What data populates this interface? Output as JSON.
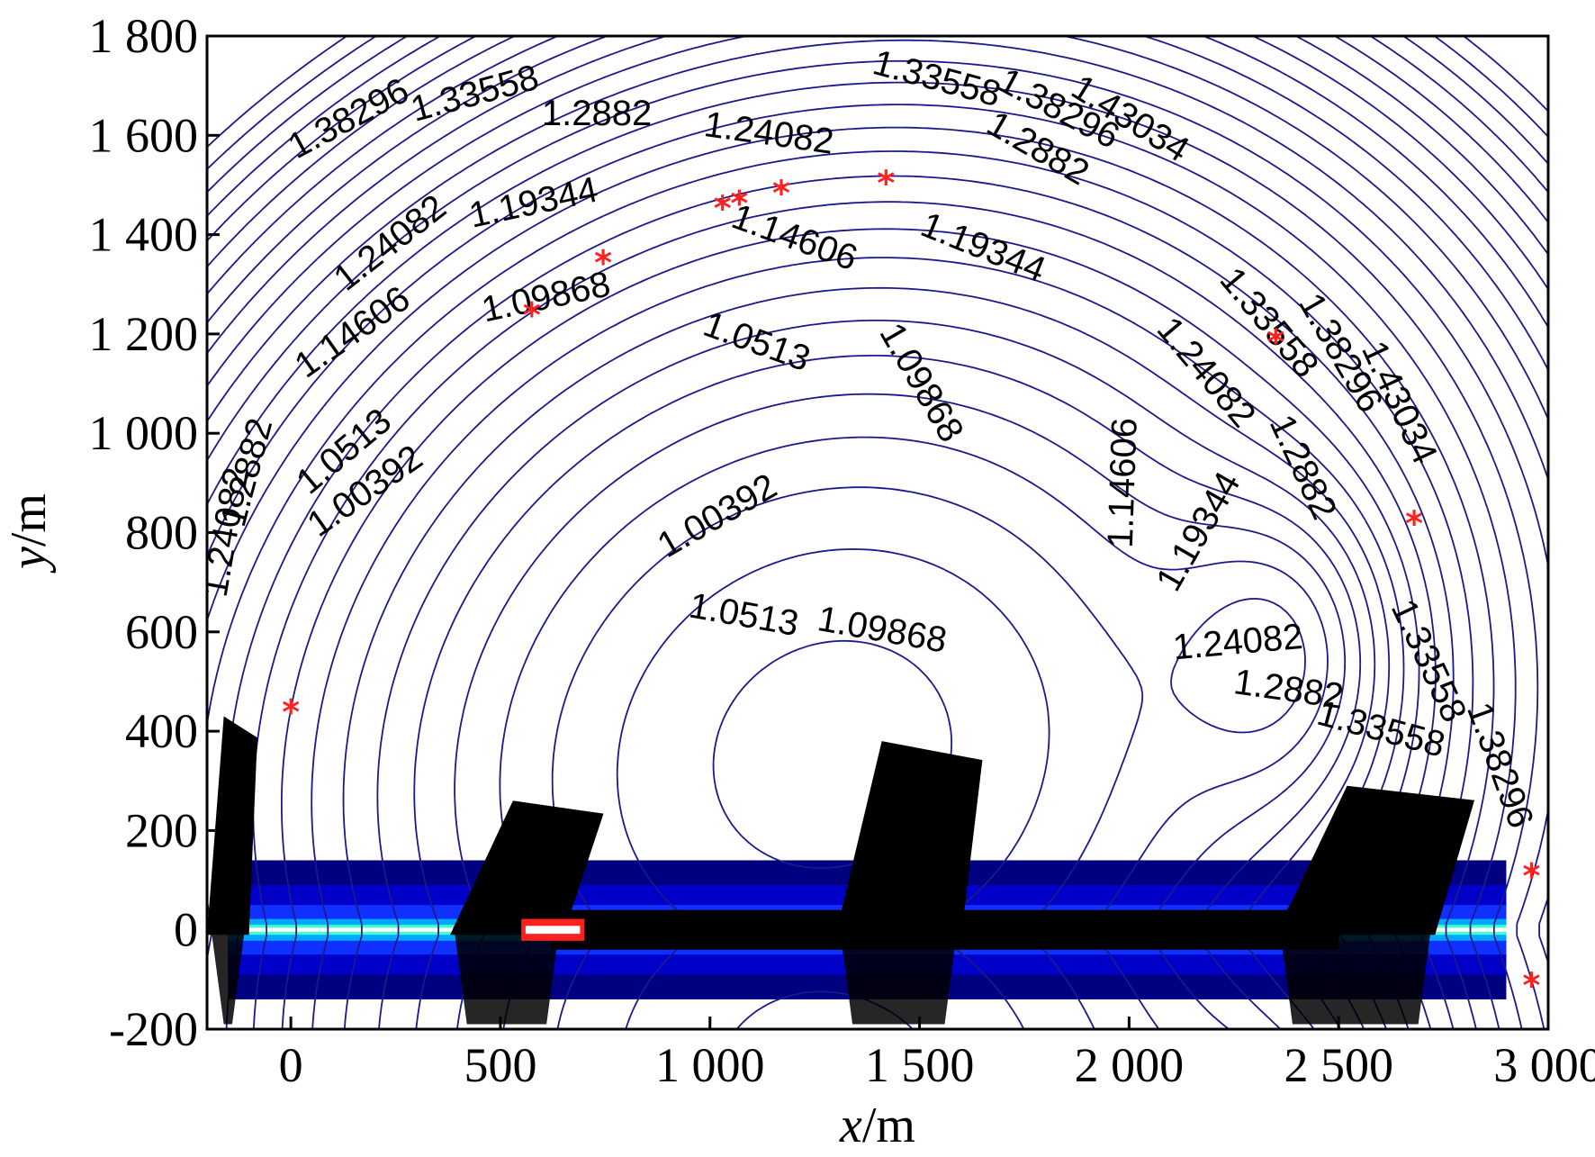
{
  "chart_data": {
    "type": "contour",
    "title": "",
    "xlabel": "x/m",
    "ylabel": "y/m",
    "xlabel_parts": {
      "var": "x",
      "unit": "/m"
    },
    "ylabel_parts": {
      "var": "y",
      "unit": "/m"
    },
    "xlim": [
      -200,
      3000
    ],
    "ylim": [
      -200,
      1800
    ],
    "x_ticks": [
      0,
      500,
      1000,
      1500,
      2000,
      2500,
      3000
    ],
    "x_tick_labels": [
      "0",
      "500",
      "1 000",
      "1 500",
      "2 000",
      "2 500",
      "3 000"
    ],
    "y_ticks": [
      -200,
      0,
      200,
      400,
      600,
      800,
      1000,
      1200,
      1400,
      1600,
      1800
    ],
    "y_tick_labels": [
      "-200",
      "0",
      "200",
      "400",
      "600",
      "800",
      "1 000",
      "1 200",
      "1 400",
      "1 600",
      "1 800"
    ],
    "contour_levels": [
      1.00392,
      1.0513,
      1.09868,
      1.14606,
      1.19344,
      1.24082,
      1.2882,
      1.33558,
      1.38296,
      1.43034
    ],
    "contour_level_labels": [
      "1.00392",
      "1.0513",
      "1.09868",
      "1.14606",
      "1.19344",
      "1.24082",
      "1.2882",
      "1.33558",
      "1.38296",
      "1.43034"
    ],
    "line_color": "#1a1a8c",
    "marker_color": "#ff2020",
    "marker_symbol": "*",
    "markers": [
      {
        "x": 0,
        "y": 440
      },
      {
        "x": 575,
        "y": 1240
      },
      {
        "x": 745,
        "y": 1345
      },
      {
        "x": 1030,
        "y": 1455
      },
      {
        "x": 1070,
        "y": 1465
      },
      {
        "x": 1170,
        "y": 1485
      },
      {
        "x": 1420,
        "y": 1505
      },
      {
        "x": 2350,
        "y": 1185
      },
      {
        "x": 2680,
        "y": 820
      },
      {
        "x": 2960,
        "y": 110
      },
      {
        "x": 2960,
        "y": -110
      }
    ],
    "label_positions": [
      {
        "text": "1.00392",
        "x": 1020,
        "y": 830,
        "angle": -30
      },
      {
        "text": "1.0513",
        "x": 1110,
        "y": 1180,
        "angle": 20
      },
      {
        "text": "1.09868",
        "x": 1500,
        "y": 1100,
        "angle": 60
      },
      {
        "text": "1.14606",
        "x": 1990,
        "y": 900,
        "angle": -88
      },
      {
        "text": "1.19344",
        "x": 2170,
        "y": 800,
        "angle": -60
      },
      {
        "text": "1.24082",
        "x": 2260,
        "y": 575,
        "angle": -5
      },
      {
        "text": "1.2882",
        "x": 2380,
        "y": 480,
        "angle": 8
      },
      {
        "text": "1.33558",
        "x": 2600,
        "y": 400,
        "angle": 15
      },
      {
        "text": "1.0513",
        "x": 130,
        "y": 960,
        "angle": -40
      },
      {
        "text": "1.00392",
        "x": 180,
        "y": 880,
        "angle": -35
      },
      {
        "text": "1.14606",
        "x": 150,
        "y": 1200,
        "angle": -35
      },
      {
        "text": "1.09868",
        "x": 610,
        "y": 1270,
        "angle": -12
      },
      {
        "text": "1.24082",
        "x": 240,
        "y": 1380,
        "angle": -38
      },
      {
        "text": "1.19344",
        "x": 580,
        "y": 1460,
        "angle": -12
      },
      {
        "text": "1.14606",
        "x": 1200,
        "y": 1390,
        "angle": 20
      },
      {
        "text": "1.19344",
        "x": 1650,
        "y": 1370,
        "angle": 22
      },
      {
        "text": "1.24082",
        "x": 1140,
        "y": 1600,
        "angle": 8
      },
      {
        "text": "1.2882",
        "x": 730,
        "y": 1640,
        "angle": 0
      },
      {
        "text": "1.33558",
        "x": 440,
        "y": 1680,
        "angle": -15
      },
      {
        "text": "1.38296",
        "x": 140,
        "y": 1630,
        "angle": -28
      },
      {
        "text": "1.33558",
        "x": 1540,
        "y": 1710,
        "angle": 15
      },
      {
        "text": "1.38296",
        "x": 1830,
        "y": 1650,
        "angle": 28
      },
      {
        "text": "1.43034",
        "x": 2000,
        "y": 1630,
        "angle": 32
      },
      {
        "text": "1.2882",
        "x": 1780,
        "y": 1570,
        "angle": 30
      },
      {
        "text": "1.24082",
        "x": 2180,
        "y": 1120,
        "angle": 50
      },
      {
        "text": "1.33558",
        "x": 2330,
        "y": 1220,
        "angle": 50
      },
      {
        "text": "1.2882",
        "x": 2410,
        "y": 930,
        "angle": 65
      },
      {
        "text": "1.38296",
        "x": 2500,
        "y": 1160,
        "angle": 60
      },
      {
        "text": "1.43034",
        "x": 2640,
        "y": 1060,
        "angle": 65
      },
      {
        "text": "1.33558",
        "x": 2710,
        "y": 540,
        "angle": 65
      },
      {
        "text": "1.38296",
        "x": 2880,
        "y": 330,
        "angle": 70
      },
      {
        "text": "1.2882",
        "x": -100,
        "y": 920,
        "angle": -75
      },
      {
        "text": "1.24082",
        "x": -150,
        "y": 800,
        "angle": -80
      },
      {
        "text": "1.09868",
        "x": 1410,
        "y": 600,
        "angle": 10
      },
      {
        "text": "1.0513",
        "x": 1080,
        "y": 630,
        "angle": 10
      }
    ]
  }
}
